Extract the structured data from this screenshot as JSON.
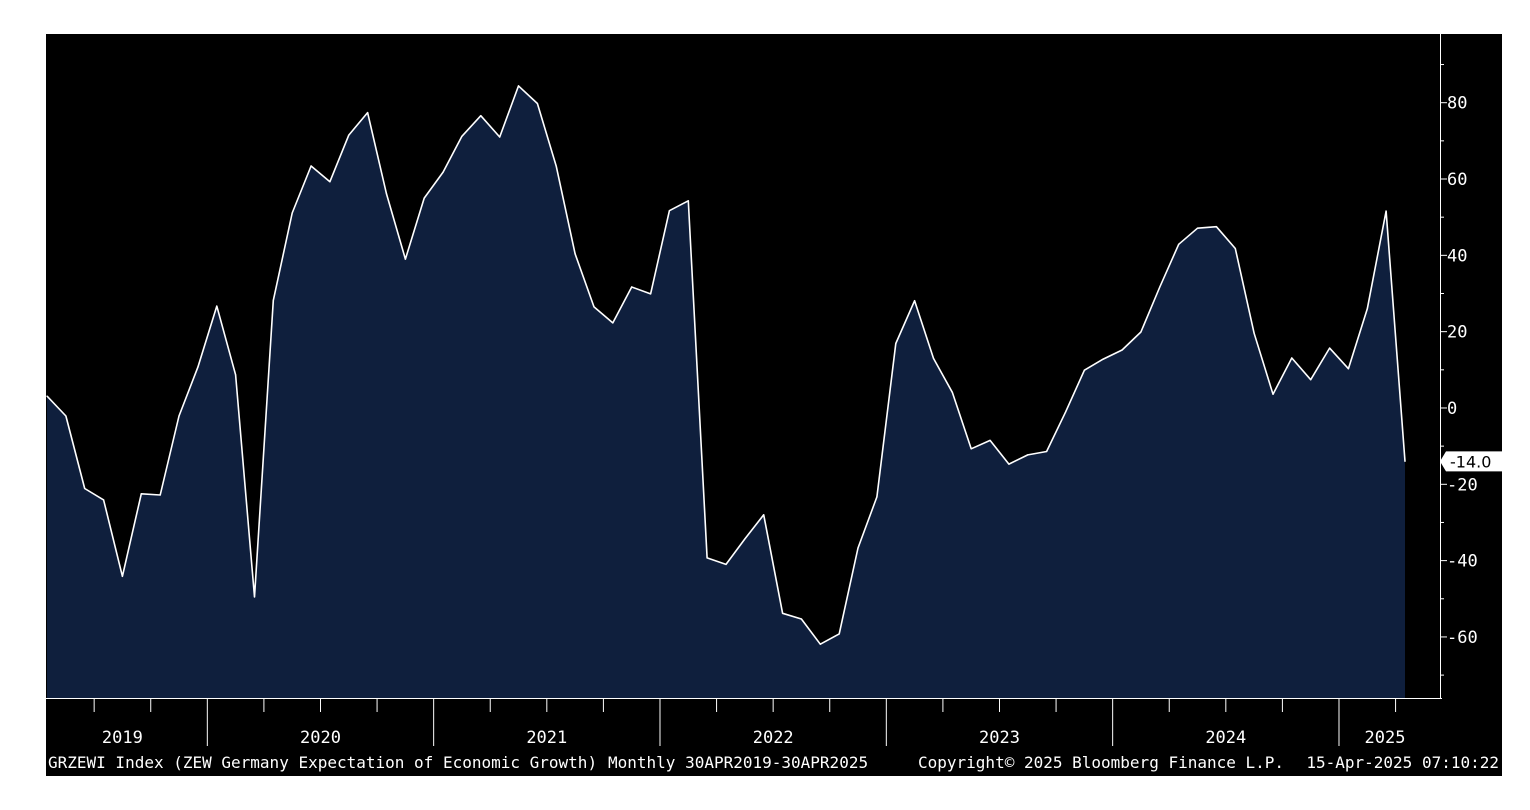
{
  "chart_data": {
    "type": "area",
    "frequency": "monthly",
    "x_start": "2019-04",
    "x_end": "2025-04",
    "x_tick_labels": [
      "2019",
      "2020",
      "2021",
      "2022",
      "2023",
      "2024",
      "2025"
    ],
    "y_tick_labels": [
      "80",
      "60",
      "40",
      "20",
      "0",
      "-20",
      "-40",
      "-60"
    ],
    "ylim": [
      -76,
      98
    ],
    "y_ticks": [
      80,
      60,
      40,
      20,
      0,
      -20,
      -40,
      -60
    ],
    "last_value_label": "-14.0",
    "series": [
      {
        "values": [
          3.1,
          -2.1,
          -21.1,
          -24.1,
          -44.1,
          -22.5,
          -22.8,
          -2.1,
          10.7,
          26.7,
          8.7,
          -49.5,
          28.2,
          51.1,
          63.4,
          59.3,
          71.5,
          77.4,
          56.1,
          39.0,
          55.0,
          61.8,
          71.2,
          76.6,
          71.0,
          84.4,
          79.8,
          63.3,
          40.4,
          26.5,
          22.3,
          31.7,
          29.9,
          51.7,
          54.3,
          -39.3,
          -41.0,
          -34.3,
          -28.0,
          -53.8,
          -55.3,
          -61.9,
          -59.2,
          -36.7,
          -23.3,
          16.9,
          28.1,
          13.0,
          4.1,
          -10.7,
          -8.5,
          -14.7,
          -12.3,
          -11.4,
          -1.1,
          9.9,
          12.8,
          15.2,
          19.9,
          31.7,
          42.9,
          47.1,
          47.5,
          41.8,
          19.6,
          3.6,
          13.1,
          7.4,
          15.7,
          10.3,
          26.0,
          51.6,
          -14.0
        ]
      }
    ],
    "colors": {
      "background": "#000000",
      "area_fill": "#0f1f3d",
      "line": "#ffffff"
    }
  },
  "footer": {
    "ticker": "GRZEWI Index (ZEW Germany Expectation of Economic Growth)",
    "range": "Monthly 30APR2019-30APR2025",
    "copyright": "Copyright© 2025 Bloomberg Finance L.P.",
    "timestamp": "15-Apr-2025 07:10:22"
  }
}
